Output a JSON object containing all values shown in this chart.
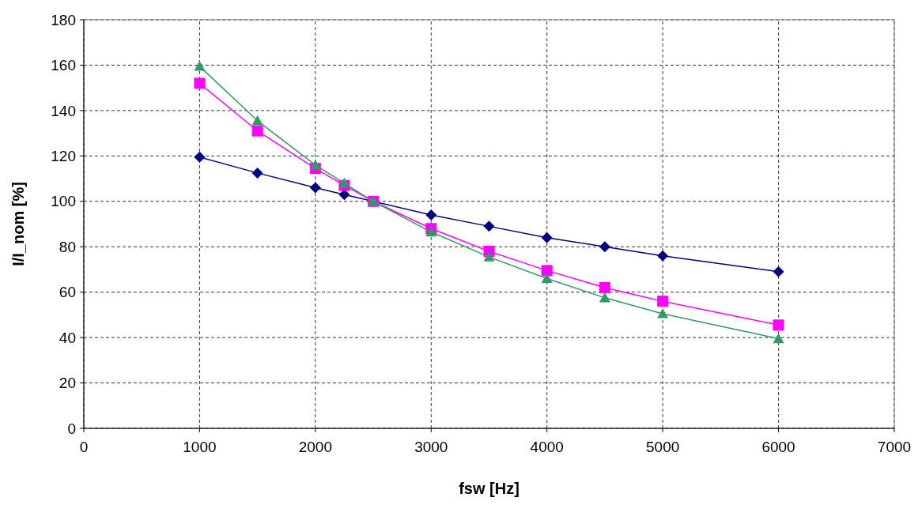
{
  "chart_data": {
    "type": "line",
    "xlabel": "fsw [Hz]",
    "ylabel": "I/I_nom [%]",
    "x": [
      1000,
      1500,
      2000,
      2250,
      2500,
      3000,
      3500,
      4000,
      4500,
      5000,
      6000
    ],
    "series": [
      {
        "color": "#000080",
        "marker": "diamond",
        "values": [
          119.5,
          112.5,
          106,
          103,
          100,
          94,
          89,
          84,
          80,
          76,
          69
        ]
      },
      {
        "color": "#ff00ff",
        "marker": "square",
        "values": [
          152,
          131,
          114.5,
          107,
          100,
          88,
          78,
          69.5,
          62,
          56,
          45.5
        ]
      },
      {
        "color": "#339966",
        "marker": "triangle",
        "values": [
          159.5,
          135.5,
          116,
          108,
          100,
          86.5,
          75.5,
          66,
          57.5,
          50.5,
          39.5
        ]
      }
    ],
    "xlim": [
      0,
      7000
    ],
    "xticks": [
      0,
      1000,
      2000,
      3000,
      4000,
      5000,
      6000,
      7000
    ],
    "ylim": [
      0,
      180
    ],
    "yticks": [
      0,
      20,
      40,
      60,
      80,
      100,
      120,
      140,
      160,
      180
    ],
    "grid": true,
    "line_style": "solid"
  }
}
